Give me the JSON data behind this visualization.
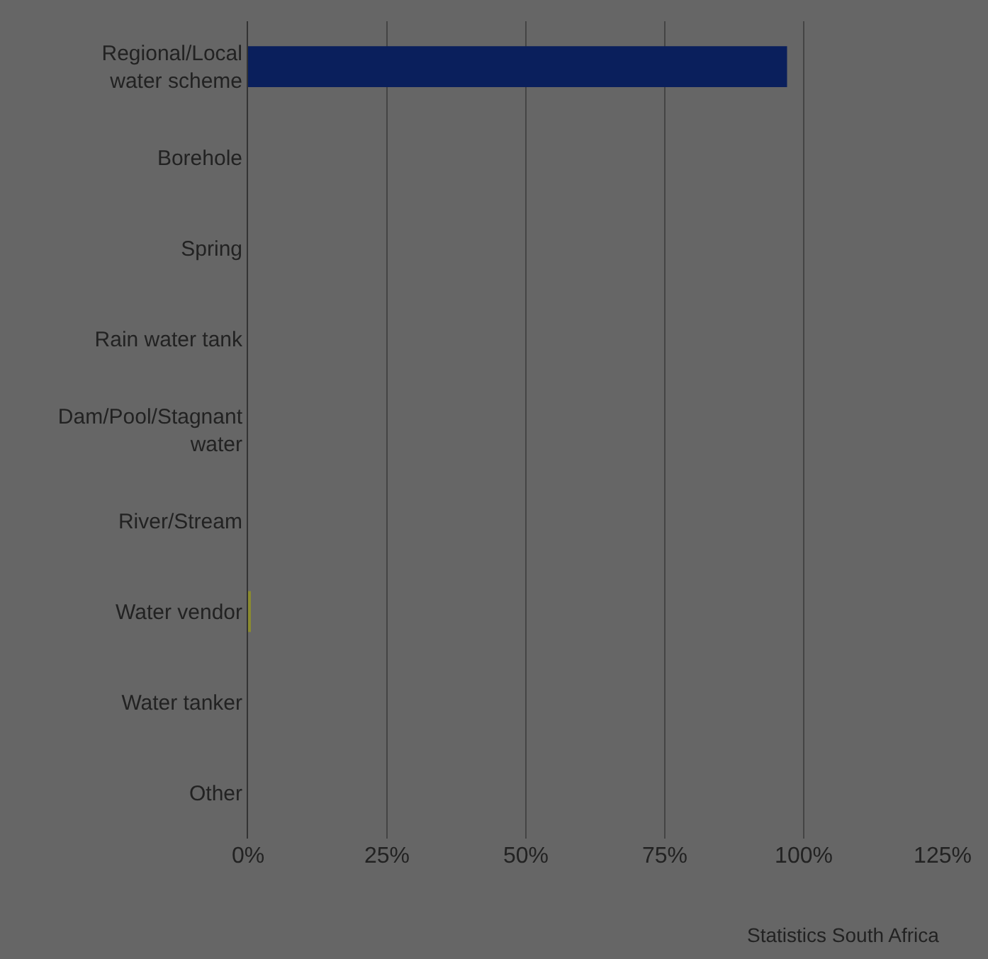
{
  "chart_data": {
    "type": "bar",
    "orientation": "horizontal",
    "categories": [
      "Regional/Local water scheme",
      "Borehole",
      "Spring",
      "Rain water tank",
      "Dam/Pool/Stagnant water",
      "River/Stream",
      "Water vendor",
      "Water tanker",
      "Other"
    ],
    "values": [
      97,
      0,
      0,
      0,
      0,
      0,
      0.5,
      0,
      0
    ],
    "colors": [
      "#0a1f5c",
      "#0a1f5c",
      "#0a1f5c",
      "#0a1f5c",
      "#0a1f5c",
      "#0a1f5c",
      "#8a8a30",
      "#0a1f5c",
      "#0a1f5c"
    ],
    "xlim": [
      0,
      125
    ],
    "xticks": [
      {
        "value": 0,
        "label": "0%"
      },
      {
        "value": 25,
        "label": "25%"
      },
      {
        "value": 50,
        "label": "50%"
      },
      {
        "value": 75,
        "label": "75%"
      },
      {
        "value": 100,
        "label": "100%"
      },
      {
        "value": 125,
        "label": "125%"
      }
    ],
    "grid": "x",
    "legend": false,
    "annotations": [
      "Statistics South Africa"
    ]
  }
}
